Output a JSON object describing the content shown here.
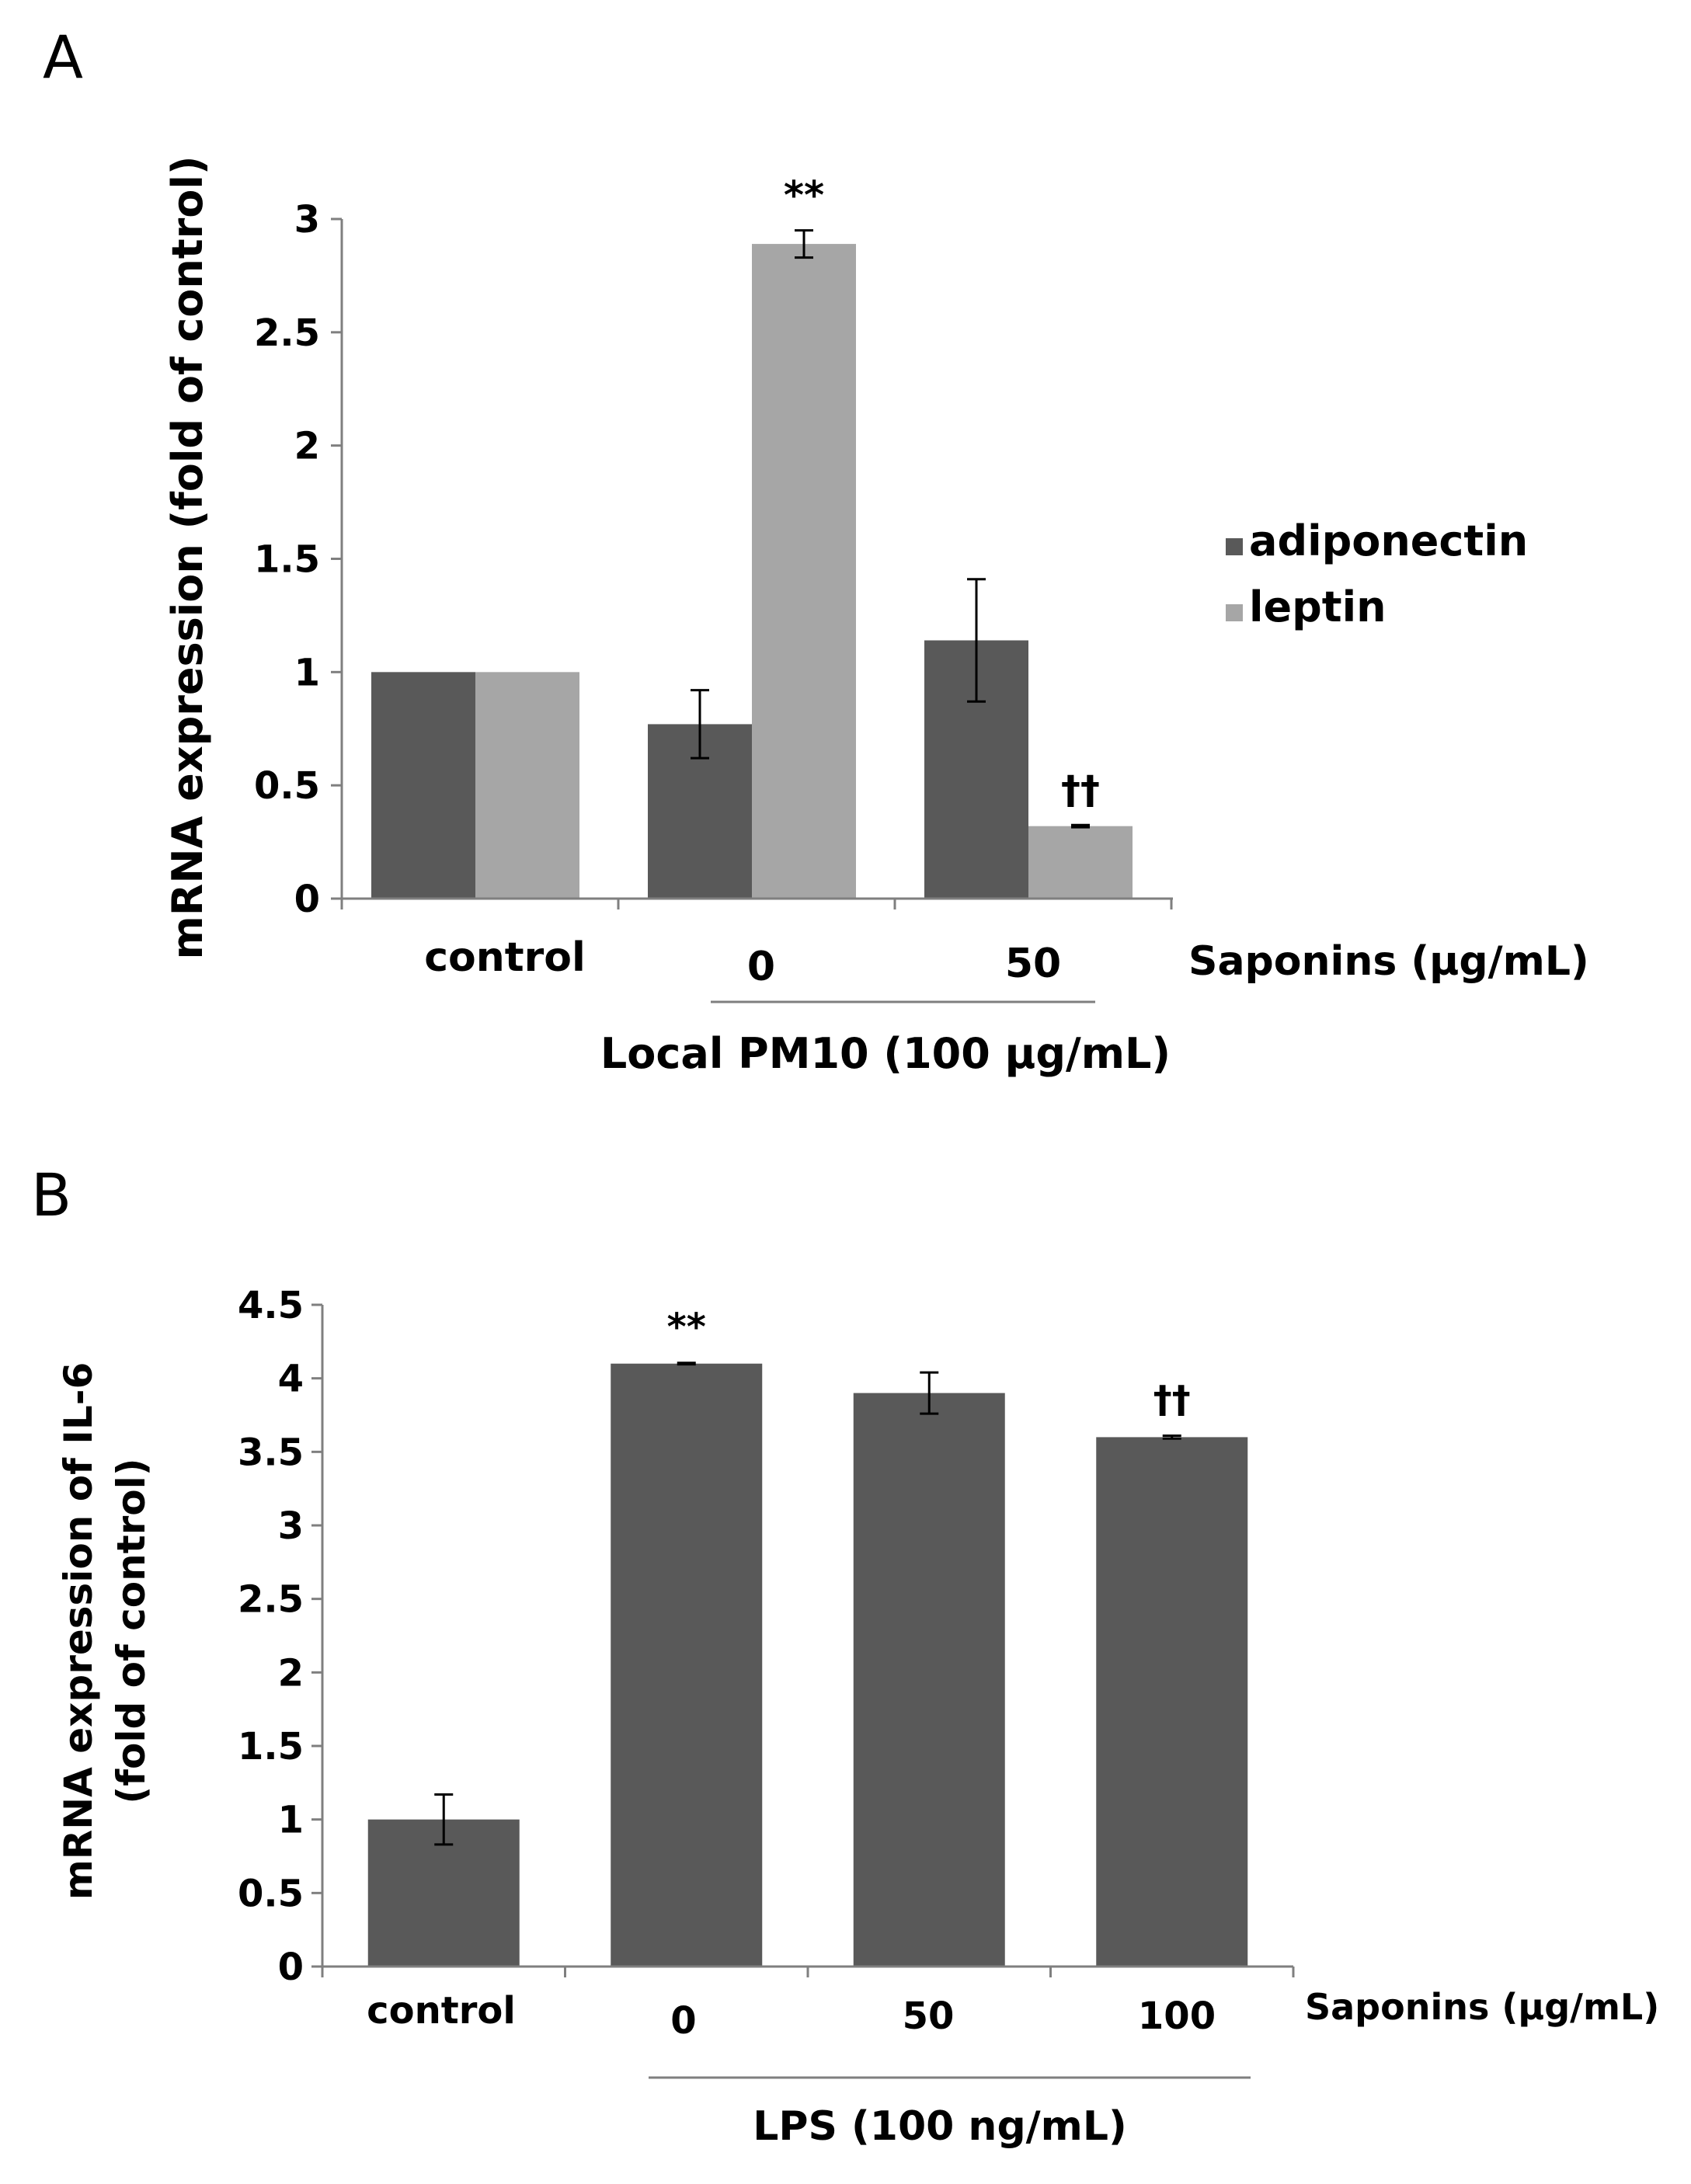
{
  "chart_data": [
    {
      "panel": "A",
      "type": "bar",
      "ylabel": "mRNA expression (fold of control)",
      "ylim": [
        0,
        3
      ],
      "yticks": [
        "0",
        "0.5",
        "1",
        "1.5",
        "2",
        "2.5",
        "3"
      ],
      "categories": [
        "control",
        "0",
        "50"
      ],
      "x_axis_title": "Saponins (μg/mL)",
      "group_label": "Local PM10 (100 μg/mL)",
      "legend_position": "right",
      "series": [
        {
          "name": "adiponectin",
          "color": "#595959",
          "values": [
            1.0,
            0.77,
            1.14
          ],
          "errors": [
            0.0,
            0.15,
            0.27
          ],
          "annotations": [
            "",
            "",
            ""
          ]
        },
        {
          "name": "leptin",
          "color": "#a6a6a6",
          "values": [
            1.0,
            2.89,
            0.32
          ],
          "errors": [
            0.0,
            0.06,
            0.005
          ],
          "annotations": [
            "",
            "**",
            "††"
          ]
        }
      ]
    },
    {
      "panel": "B",
      "type": "bar",
      "ylabel_line1": "mRNA expression of IL-6",
      "ylabel_line2": "(fold of control)",
      "ylim": [
        0,
        4.5
      ],
      "yticks": [
        "0",
        "0.5",
        "1",
        "1.5",
        "2",
        "2.5",
        "3",
        "3.5",
        "4",
        "4.5"
      ],
      "categories": [
        "control",
        "0",
        "50",
        "100"
      ],
      "x_axis_title": "Saponins (μg/mL)",
      "group_label": "LPS (100 ng/mL)",
      "series": [
        {
          "name": "IL-6",
          "color": "#595959",
          "values": [
            1.0,
            4.1,
            3.9,
            3.6
          ],
          "errors": [
            0.17,
            0.005,
            0.14,
            0.01
          ],
          "annotations": [
            "",
            "**",
            "",
            "††"
          ]
        }
      ]
    }
  ]
}
